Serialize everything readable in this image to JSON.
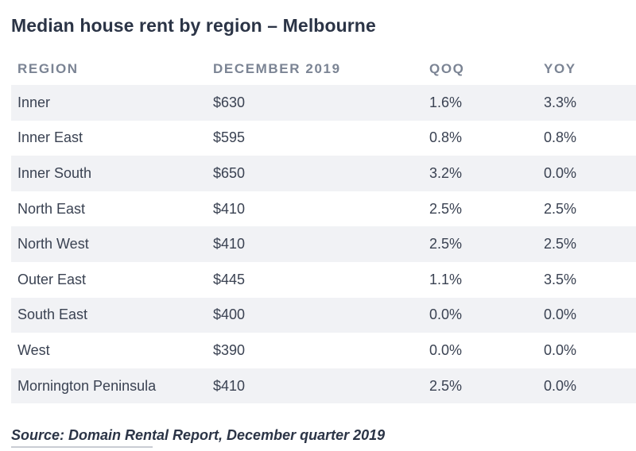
{
  "chart_data": {
    "type": "table",
    "title": "Median house rent by region – Melbourne",
    "columns": [
      "REGION",
      "DECEMBER 2019",
      "QOQ",
      "YOY"
    ],
    "rows": [
      {
        "region": "Inner",
        "rent": "$630",
        "qoq": "1.6%",
        "yoy": "3.3%"
      },
      {
        "region": "Inner East",
        "rent": "$595",
        "qoq": "0.8%",
        "yoy": "0.8%"
      },
      {
        "region": "Inner South",
        "rent": "$650",
        "qoq": "3.2%",
        "yoy": "0.0%"
      },
      {
        "region": "North East",
        "rent": "$410",
        "qoq": "2.5%",
        "yoy": "2.5%"
      },
      {
        "region": "North West",
        "rent": "$410",
        "qoq": "2.5%",
        "yoy": "2.5%"
      },
      {
        "region": "Outer East",
        "rent": "$445",
        "qoq": "1.1%",
        "yoy": "3.5%"
      },
      {
        "region": "South East",
        "rent": "$400",
        "qoq": "0.0%",
        "yoy": "0.0%"
      },
      {
        "region": "West",
        "rent": "$390",
        "qoq": "0.0%",
        "yoy": "0.0%"
      },
      {
        "region": "Mornington Peninsula",
        "rent": "$410",
        "qoq": "2.5%",
        "yoy": "0.0%"
      }
    ],
    "source": "Source: Domain Rental Report, December quarter 2019"
  },
  "colors": {
    "title": "#2b3446",
    "header": "#7b8494",
    "row_text": "#3a4252",
    "shaded_row": "#f1f2f5"
  }
}
